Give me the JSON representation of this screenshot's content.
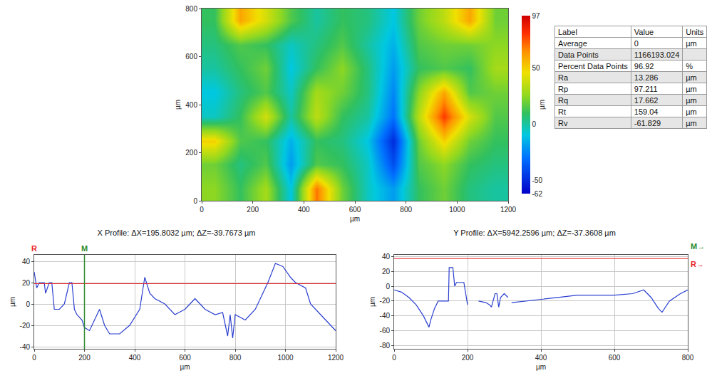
{
  "chart_data": [
    {
      "type": "heatmap",
      "x_label": "µm",
      "y_label": "µm",
      "colorbar_title": "µm",
      "x": [
        50,
        150,
        250,
        350,
        450,
        550,
        650,
        750,
        850,
        950,
        1050,
        1150
      ],
      "y": [
        50,
        150,
        250,
        350,
        450,
        550,
        650,
        750
      ],
      "z": [
        [
          25,
          10,
          30,
          -10,
          70,
          20,
          -5,
          -20,
          10,
          20,
          5,
          0
        ],
        [
          20,
          5,
          15,
          -20,
          15,
          10,
          -5,
          -40,
          15,
          25,
          10,
          5
        ],
        [
          50,
          15,
          10,
          -15,
          10,
          5,
          -10,
          -50,
          20,
          50,
          20,
          10
        ],
        [
          -5,
          10,
          40,
          0,
          35,
          10,
          0,
          -30,
          35,
          80,
          40,
          15
        ],
        [
          -10,
          5,
          15,
          -5,
          30,
          20,
          5,
          -25,
          25,
          60,
          15,
          20
        ],
        [
          0,
          10,
          20,
          -10,
          10,
          25,
          5,
          -20,
          10,
          15,
          10,
          30
        ],
        [
          5,
          15,
          10,
          -5,
          5,
          15,
          0,
          -15,
          15,
          20,
          20,
          25
        ],
        [
          10,
          60,
          40,
          15,
          0,
          10,
          5,
          -10,
          20,
          35,
          60,
          20
        ]
      ],
      "zlim": [
        -62,
        97
      ],
      "zticks": [
        97,
        50,
        0,
        -50,
        -62
      ],
      "xlim": [
        0,
        1200
      ],
      "xticks": [
        0,
        200,
        400,
        600,
        800,
        1000,
        1200
      ],
      "ylim": [
        0,
        800
      ],
      "yticks": [
        0,
        200,
        400,
        600,
        800
      ],
      "grid": false
    },
    {
      "type": "line",
      "title": "X Profile: ΔX=195.8032 µm; ΔZ=-39.7673 µm",
      "x_label": "µm",
      "y_label": "µm",
      "x": [
        0,
        10,
        20,
        40,
        45,
        60,
        70,
        80,
        100,
        120,
        140,
        150,
        160,
        170,
        190,
        200,
        220,
        240,
        260,
        280,
        300,
        340,
        380,
        420,
        440,
        460,
        480,
        520,
        560,
        600,
        640,
        680,
        720,
        750,
        770,
        780,
        790,
        800,
        840,
        880,
        900,
        930,
        960,
        990,
        1020,
        1040,
        1080,
        1100,
        1140,
        1180,
        1200
      ],
      "values": [
        30,
        15,
        20,
        20,
        10,
        20,
        20,
        -5,
        -5,
        0,
        20,
        20,
        -5,
        -10,
        -15,
        -22,
        -25,
        -15,
        -5,
        -20,
        -28,
        -28,
        -20,
        -5,
        25,
        10,
        5,
        0,
        -10,
        -5,
        5,
        -5,
        -10,
        -8,
        -30,
        -10,
        -32,
        -10,
        -15,
        -5,
        5,
        20,
        38,
        35,
        25,
        20,
        15,
        0,
        -10,
        -20,
        -25
      ],
      "color": "#2a3fd0",
      "xlim": [
        0,
        1200
      ],
      "xticks": [
        0,
        200,
        400,
        600,
        800,
        1000,
        1200
      ],
      "ylim": [
        -42,
        46
      ],
      "yticks": [
        -40,
        -20,
        0,
        20,
        40
      ],
      "grid": true,
      "annotations": [
        {
          "text": "R",
          "color": "#e8252a",
          "y": 19
        },
        {
          "text": "M",
          "color": "#2e8b2e",
          "x": 200
        }
      ]
    },
    {
      "type": "line",
      "title": "Y Profile: ΔX=5942.2596 µm; ΔZ=-37.3608 µm",
      "x_label": "µm",
      "y_label": "µm",
      "x": [
        0,
        20,
        40,
        60,
        80,
        95,
        100,
        110,
        120,
        140,
        148,
        150,
        160,
        165,
        170,
        180,
        190,
        200,
        205,
        230,
        250,
        260,
        265,
        275,
        280,
        285,
        290,
        300,
        310,
        315,
        320,
        360,
        400,
        450,
        500,
        550,
        600,
        650,
        680,
        700,
        720,
        730,
        750,
        780,
        800
      ],
      "values": [
        -5,
        -8,
        -15,
        -25,
        -40,
        -55,
        -45,
        -30,
        -20,
        -20,
        -20,
        25,
        25,
        0,
        5,
        5,
        5,
        -25,
        null,
        -20,
        -22,
        -25,
        -28,
        -10,
        -10,
        -28,
        -15,
        -10,
        -15,
        null,
        -22,
        -20,
        -18,
        -15,
        -12,
        -12,
        -12,
        -10,
        -5,
        -15,
        -30,
        -35,
        -20,
        -10,
        -5
      ],
      "color": "#2a3fd0",
      "xlim": [
        0,
        800
      ],
      "xticks": [
        0,
        200,
        400,
        600,
        800
      ],
      "ylim": [
        -84,
        42
      ],
      "yticks": [
        -80,
        -60,
        -40,
        -20,
        0,
        20,
        40
      ],
      "grid": true,
      "annotations": [
        {
          "text": "M→",
          "color": "#2e8b2e"
        },
        {
          "text": "R→",
          "color": "#e8252a",
          "y": 37
        }
      ]
    }
  ],
  "table": {
    "header": [
      "Label",
      "Value",
      "Units"
    ],
    "rows": [
      [
        "Average",
        "0",
        "µm"
      ],
      [
        "Data Points",
        "1166193.024",
        null
      ],
      [
        "Percent Data Points",
        "96.92",
        "%"
      ],
      [
        "Ra",
        "13.286",
        "µm"
      ],
      [
        "Rp",
        "97.211",
        "µm"
      ],
      [
        "Rq",
        "17.662",
        "µm"
      ],
      [
        "Rt",
        "159.04",
        "µm"
      ],
      [
        "Rv",
        "-61.829",
        "µm"
      ]
    ]
  }
}
